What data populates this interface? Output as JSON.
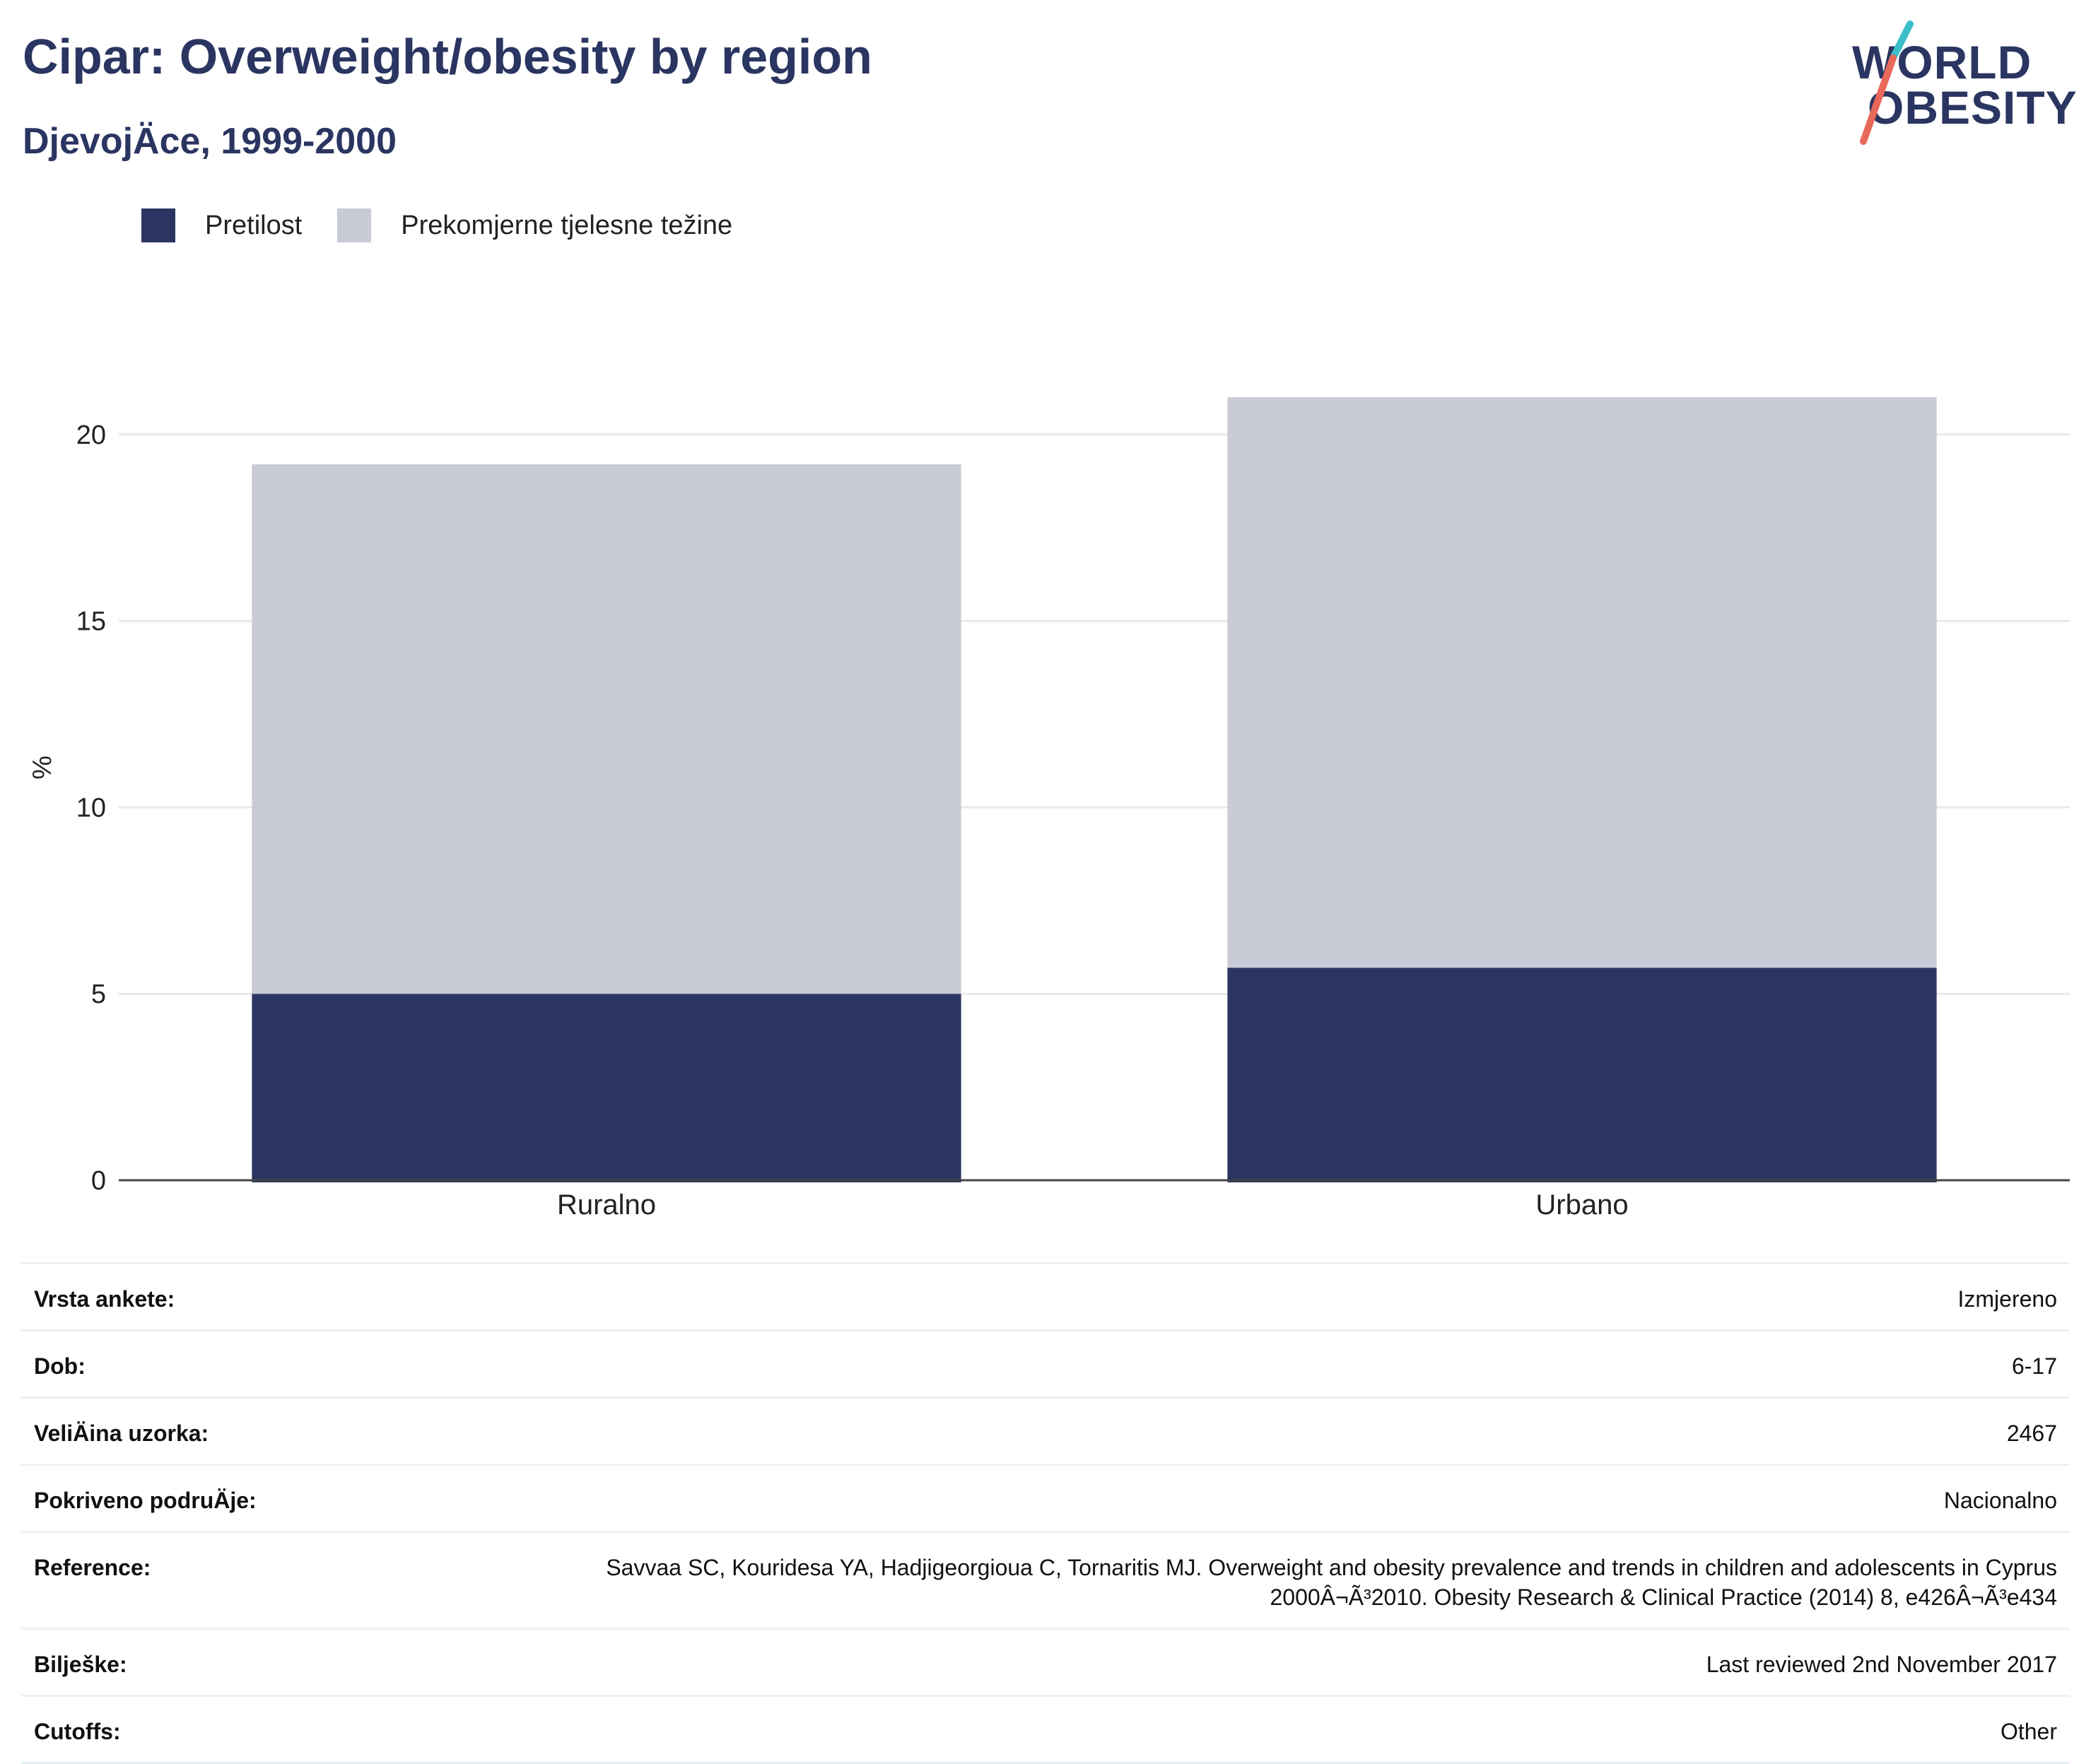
{
  "header": {
    "title": "Cipar: Overweight/obesity by region",
    "subtitle": "DjevojÄce, 1999-2000"
  },
  "logo": {
    "line1": "WORLD",
    "line2": "OBESITY",
    "accent_teal": "#3bbfc7",
    "accent_red": "#e8685a"
  },
  "colors": {
    "obesity": "#2a3561",
    "overweight": "#c9cbd7",
    "title": "#2a3561"
  },
  "chart_data": {
    "type": "bar",
    "stacked": true,
    "categories": [
      "Ruralno",
      "Urbano"
    ],
    "series": [
      {
        "name": "Pretilost",
        "values": [
          5.0,
          5.7
        ]
      },
      {
        "name": "Prekomjerne tjelesne težine",
        "values": [
          14.2,
          15.3
        ]
      }
    ],
    "ylabel": "%",
    "xlabel": "",
    "ylim": [
      0,
      21
    ],
    "yticks": [
      0,
      5,
      10,
      15,
      20
    ],
    "grid": true,
    "legend_position": "top-left"
  },
  "info": [
    {
      "label": "Vrsta ankete:",
      "value": "Izmjereno"
    },
    {
      "label": "Dob:",
      "value": "6-17"
    },
    {
      "label": "VeliÄina uzorka:",
      "value": "2467"
    },
    {
      "label": "Pokriveno podruÄje:",
      "value": "Nacionalno"
    },
    {
      "label": "Reference:",
      "value": "Savvaa SC, Kouridesa YA, Hadjigeorgioua C, Tornaritis MJ. Overweight and obesity prevalence and trends in children and adolescents in Cyprus 2000Â¬Ã³2010. Obesity Research & Clinical Practice (2014) 8, e426Â¬Ã³e434"
    },
    {
      "label": "Bilješke:",
      "value": "Last reviewed 2nd November 2017"
    },
    {
      "label": "Cutoffs:",
      "value": "Other"
    }
  ]
}
